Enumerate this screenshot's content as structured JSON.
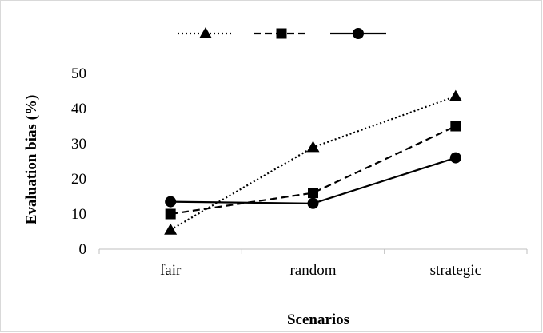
{
  "chart_data": {
    "type": "line",
    "categories": [
      "fair",
      "random",
      "strategic"
    ],
    "series": [
      {
        "marker": "triangle",
        "dash": "dotted",
        "values": [
          5.5,
          29,
          43.5
        ]
      },
      {
        "marker": "square",
        "dash": "dashed",
        "values": [
          10,
          16,
          35
        ]
      },
      {
        "marker": "circle",
        "dash": "solid",
        "values": [
          13.5,
          13,
          26
        ]
      }
    ],
    "xlabel": "Scenarios",
    "ylabel": "Evaluation bias (%)",
    "ylim": [
      0,
      50
    ],
    "yticks": [
      0,
      10,
      20,
      30,
      40,
      50
    ],
    "grid": false,
    "legend": "top",
    "colors": {
      "line": "#000000",
      "axis": "#bfbfbf",
      "frame": "#d9d9d9"
    }
  }
}
